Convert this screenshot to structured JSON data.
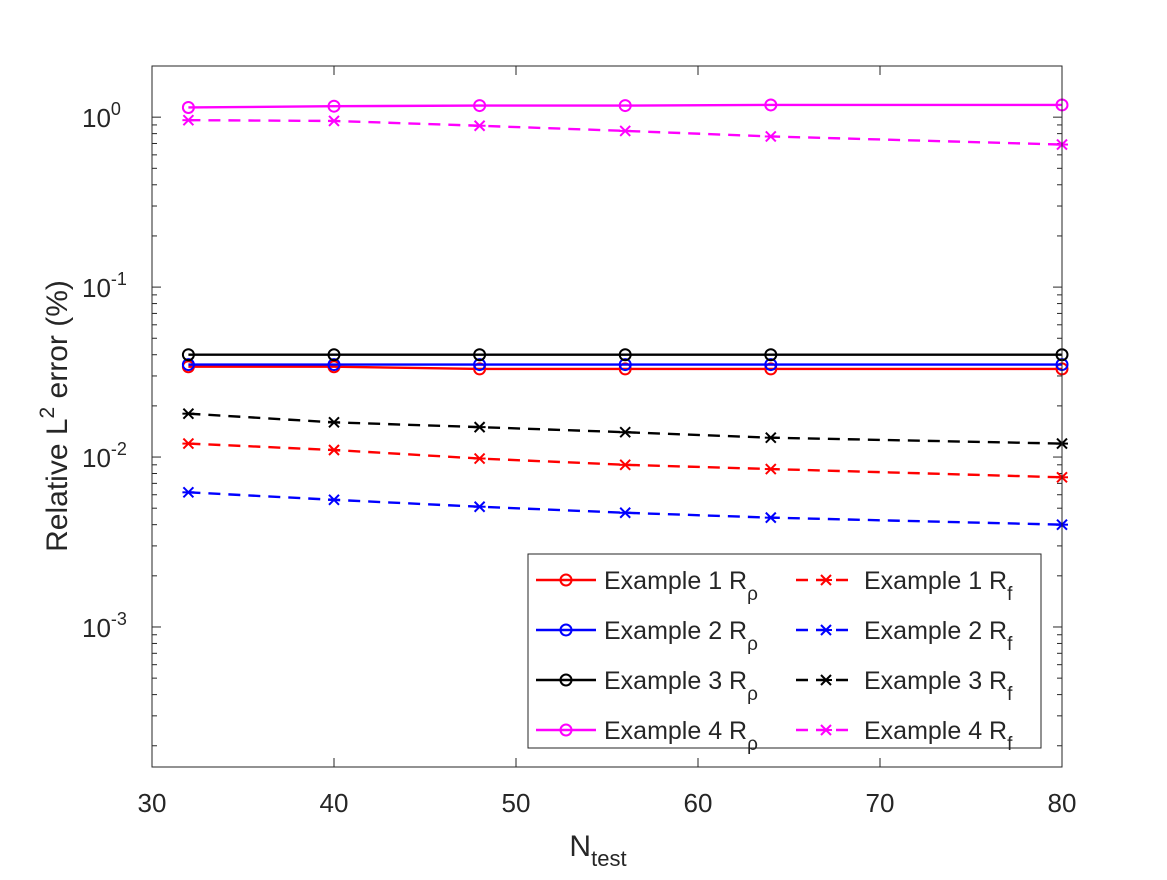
{
  "chart_data": {
    "type": "line",
    "title": "",
    "xlabel": {
      "main": "N",
      "sub": "test"
    },
    "ylabel": {
      "pre": "Relative L",
      "sup": "2",
      "post": " error (%)"
    },
    "yscale": "log",
    "xlim": [
      30,
      80
    ],
    "ylim": [
      0.00015,
      2
    ],
    "x_ticks": [
      30,
      40,
      50,
      60,
      70,
      80
    ],
    "x_tick_labels": [
      "30",
      "40",
      "50",
      "60",
      "70",
      "80"
    ],
    "y_ticks": [
      {
        "value": 0.001,
        "base": "10",
        "exp": "-3"
      },
      {
        "value": 0.01,
        "base": "10",
        "exp": "-2"
      },
      {
        "value": 0.1,
        "base": "10",
        "exp": "-1"
      },
      {
        "value": 1,
        "base": "10",
        "exp": "0"
      }
    ],
    "x": [
      32,
      40,
      48,
      56,
      64,
      80
    ],
    "series": [
      {
        "name": "Example 1 R",
        "sub": "ρ",
        "color": "#ff0000",
        "dash": false,
        "marker": "circle",
        "values": [
          0.034,
          0.034,
          0.033,
          0.033,
          0.033,
          0.033
        ]
      },
      {
        "name": "Example 2 R",
        "sub": "ρ",
        "color": "#0000ff",
        "dash": false,
        "marker": "circle",
        "values": [
          0.035,
          0.035,
          0.035,
          0.035,
          0.035,
          0.035
        ]
      },
      {
        "name": "Example 3 R",
        "sub": "ρ",
        "color": "#000000",
        "dash": false,
        "marker": "circle",
        "values": [
          0.04,
          0.04,
          0.04,
          0.04,
          0.04,
          0.04
        ]
      },
      {
        "name": "Example 4 R",
        "sub": "ρ",
        "color": "#ff00ff",
        "dash": false,
        "marker": "circle",
        "values": [
          1.14,
          1.16,
          1.17,
          1.17,
          1.18,
          1.18
        ]
      },
      {
        "name": "Example 1 R",
        "sub": "f",
        "color": "#ff0000",
        "dash": true,
        "marker": "star",
        "values": [
          0.012,
          0.011,
          0.0098,
          0.009,
          0.0085,
          0.0076
        ]
      },
      {
        "name": "Example 2 R",
        "sub": "f",
        "color": "#0000ff",
        "dash": true,
        "marker": "star",
        "values": [
          0.0062,
          0.0056,
          0.0051,
          0.0047,
          0.0044,
          0.004
        ]
      },
      {
        "name": "Example 3 R",
        "sub": "f",
        "color": "#000000",
        "dash": true,
        "marker": "star",
        "values": [
          0.018,
          0.016,
          0.015,
          0.014,
          0.013,
          0.012
        ]
      },
      {
        "name": "Example 4 R",
        "sub": "f",
        "color": "#ff00ff",
        "dash": true,
        "marker": "star",
        "values": [
          0.96,
          0.95,
          0.89,
          0.83,
          0.77,
          0.69
        ]
      }
    ],
    "legend": {
      "location": "bottom-right",
      "columns": 2
    },
    "grid": false
  }
}
